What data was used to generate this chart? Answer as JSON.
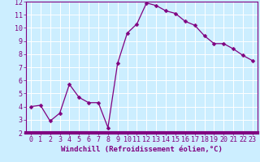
{
  "x": [
    0,
    1,
    2,
    3,
    4,
    5,
    6,
    7,
    8,
    9,
    10,
    11,
    12,
    13,
    14,
    15,
    16,
    17,
    18,
    19,
    20,
    21,
    22,
    23
  ],
  "y": [
    4.0,
    4.1,
    2.9,
    3.5,
    5.7,
    4.7,
    4.3,
    4.3,
    2.4,
    7.3,
    9.6,
    10.3,
    11.9,
    11.7,
    11.3,
    11.1,
    10.5,
    10.2,
    9.4,
    8.8,
    8.8,
    8.4,
    7.9,
    7.5
  ],
  "line_color": "#800080",
  "marker": "D",
  "marker_size": 2.5,
  "bg_color": "#cceeff",
  "grid_color": "#ffffff",
  "xlabel": "Windchill (Refroidissement éolien,°C)",
  "xlim": [
    -0.5,
    23.5
  ],
  "ylim": [
    2,
    12
  ],
  "xticks": [
    0,
    1,
    2,
    3,
    4,
    5,
    6,
    7,
    8,
    9,
    10,
    11,
    12,
    13,
    14,
    15,
    16,
    17,
    18,
    19,
    20,
    21,
    22,
    23
  ],
  "yticks": [
    2,
    3,
    4,
    5,
    6,
    7,
    8,
    9,
    10,
    11,
    12
  ],
  "tick_color": "#800080",
  "label_color": "#800080",
  "spine_color": "#800080",
  "xlabel_fontsize": 6.5,
  "tick_fontsize": 6.0,
  "bottom_bar_color": "#800080",
  "bottom_bar_height": 0.025
}
